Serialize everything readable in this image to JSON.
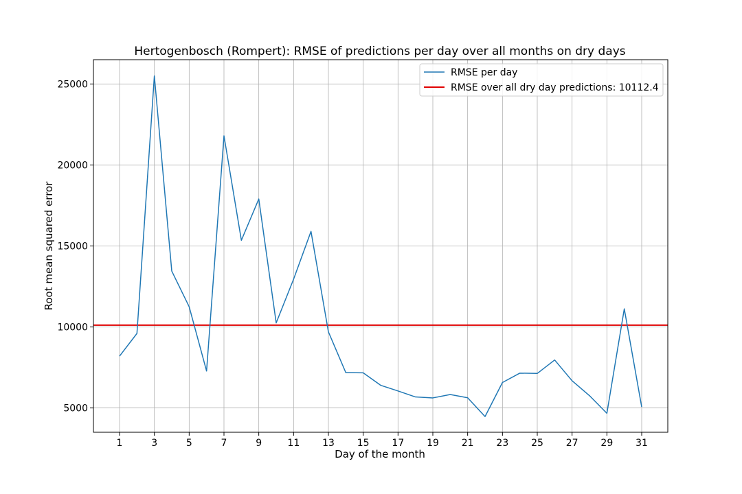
{
  "chart_data": {
    "type": "line",
    "title": "Hertogenbosch (Rompert): RMSE of predictions per day over all months on dry days",
    "xlabel": "Day of the month",
    "ylabel": "Root mean squared error",
    "xlim": [
      -0.5,
      32.5
    ],
    "ylim": [
      3500,
      26500
    ],
    "x_ticks": [
      1,
      3,
      5,
      7,
      9,
      11,
      13,
      15,
      17,
      19,
      21,
      23,
      25,
      27,
      29,
      31
    ],
    "y_ticks": [
      5000,
      10000,
      15000,
      20000,
      25000
    ],
    "grid": true,
    "legend_position": "top-right",
    "x": [
      1,
      2,
      3,
      4,
      5,
      6,
      7,
      8,
      9,
      10,
      11,
      12,
      13,
      14,
      15,
      16,
      17,
      18,
      19,
      20,
      21,
      22,
      23,
      24,
      25,
      26,
      27,
      28,
      29,
      30,
      31
    ],
    "series": [
      {
        "name": "RMSE per day",
        "color": "#1f77b4",
        "values": [
          8200,
          9600,
          25500,
          13450,
          11250,
          7280,
          21800,
          15350,
          17900,
          10250,
          12950,
          15900,
          9700,
          7180,
          7170,
          6400,
          6050,
          5680,
          5620,
          5830,
          5630,
          4470,
          6570,
          7150,
          7130,
          7960,
          6680,
          5760,
          4670,
          11120,
          5060
        ]
      }
    ],
    "reference_line": {
      "name": "RMSE over all dry day predictions: 10112.4",
      "color": "#e00000",
      "value": 10112.4
    }
  }
}
